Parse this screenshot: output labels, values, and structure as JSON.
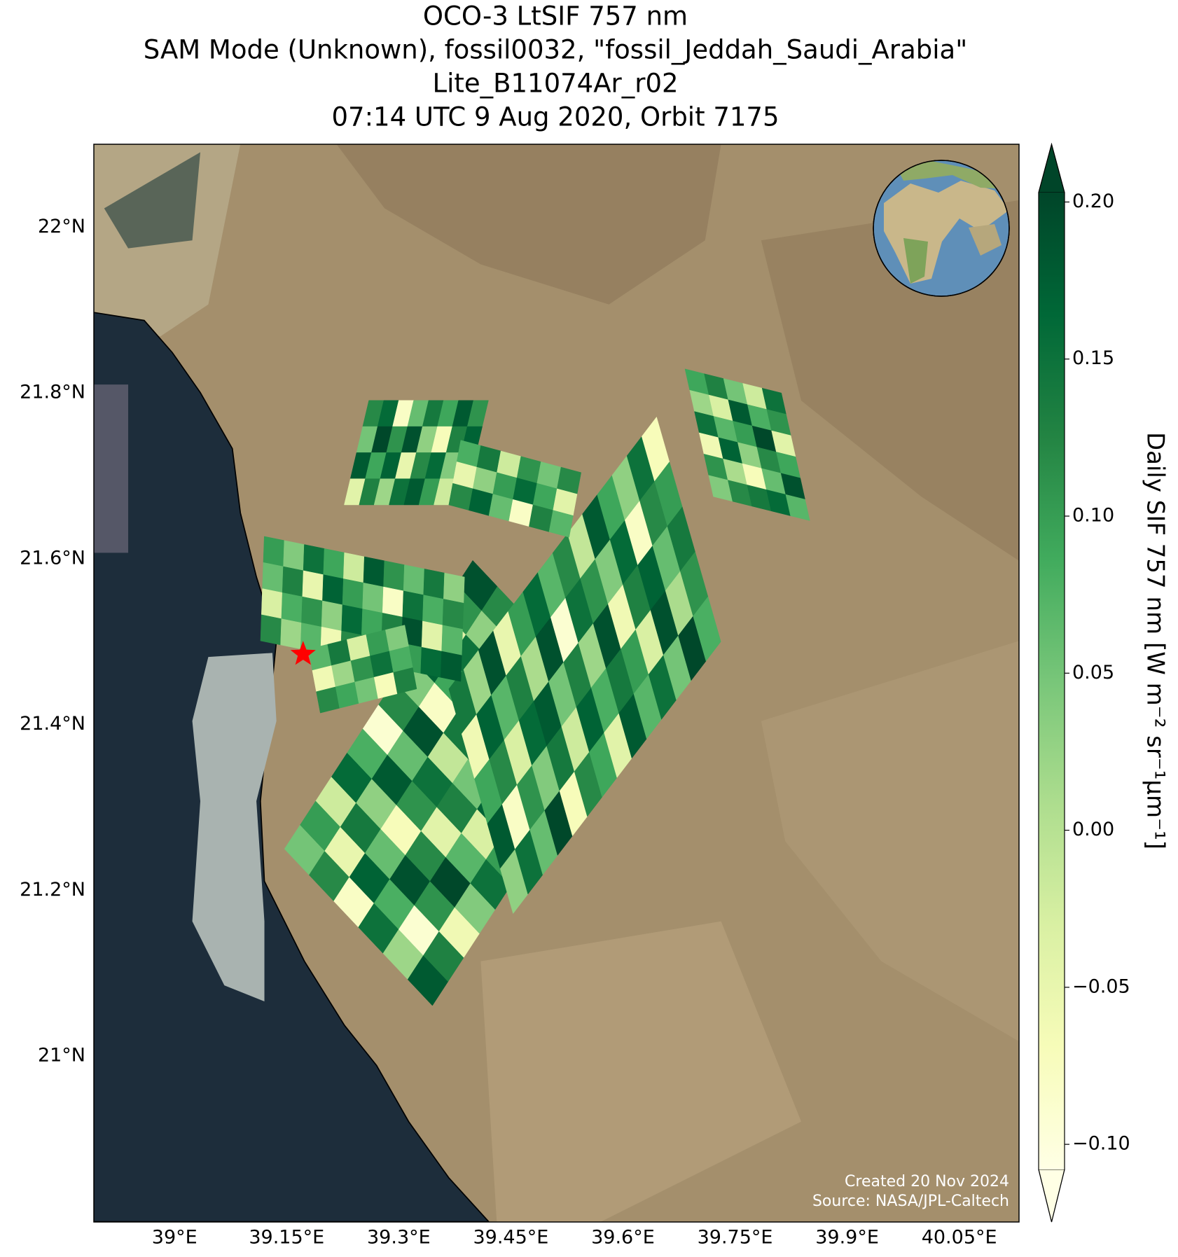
{
  "chart_data": {
    "type": "map",
    "title": [
      "OCO-3 LtSIF 757 nm",
      "SAM Mode (Unknown), fossil0032, \"fossil_Jeddah_Saudi_Arabia\"",
      "Lite_B11074Ar_r02",
      "07:14 UTC 9 Aug 2020, Orbit 7175"
    ],
    "xlim": [
      38.892,
      40.13
    ],
    "ylim": [
      20.8,
      22.1
    ],
    "xticks": [
      {
        "value": 39,
        "label": "39°E"
      },
      {
        "value": 39.15,
        "label": "39.15°E"
      },
      {
        "value": 39.3,
        "label": "39.3°E"
      },
      {
        "value": 39.45,
        "label": "39.45°E"
      },
      {
        "value": 39.6,
        "label": "39.6°E"
      },
      {
        "value": 39.75,
        "label": "39.75°E"
      },
      {
        "value": 39.9,
        "label": "39.9°E"
      },
      {
        "value": 40.05,
        "label": "40.05°E"
      }
    ],
    "yticks": [
      {
        "value": 21,
        "label": "21°N"
      },
      {
        "value": 21.2,
        "label": "21.2°N"
      },
      {
        "value": 21.4,
        "label": "21.4°N"
      },
      {
        "value": 21.6,
        "label": "21.6°N"
      },
      {
        "value": 21.8,
        "label": "21.8°N"
      },
      {
        "value": 22,
        "label": "22°N"
      }
    ],
    "grid": true,
    "colormap": "YlGn",
    "clim": [
      -0.108,
      0.203
    ],
    "colorbar_label": "Daily SIF 757 nm [W m⁻² sr⁻¹μm⁻¹]",
    "colorbar_ticks": [
      {
        "value": -0.1,
        "label": "−0.10"
      },
      {
        "value": -0.05,
        "label": "−0.05"
      },
      {
        "value": 0,
        "label": "0.00"
      },
      {
        "value": 0.05,
        "label": "0.05"
      },
      {
        "value": 0.1,
        "label": "0.10"
      },
      {
        "value": 0.15,
        "label": "0.15"
      },
      {
        "value": 0.2,
        "label": "0.20"
      }
    ],
    "target": {
      "lon": 39.172,
      "lat": 21.485,
      "color": "#ff0000"
    },
    "credits": [
      "Created 20 Nov 2024",
      "Source: NASA/JPL-Caltech"
    ],
    "swaths": [
      {
        "corner_a": [
          39.147,
          21.25
        ],
        "corner_b": [
          39.345,
          21.061
        ],
        "corner_c": [
          39.399,
          21.598
        ],
        "values": [
          [
            0.05,
            0.12,
            -0.08,
            0.15,
            0.02,
            0.18
          ],
          [
            0.1,
            -0.05,
            0.17,
            0.08,
            -0.09,
            0.13
          ],
          [
            -0.02,
            0.14,
            0.06,
            0.19,
            0.11,
            -0.06
          ],
          [
            0.16,
            0.03,
            -0.07,
            0.12,
            0.2,
            0.04
          ],
          [
            0.08,
            0.18,
            0.11,
            -0.04,
            0.07,
            0.15
          ],
          [
            -0.09,
            0.06,
            0.15,
            0.13,
            -0.03,
            0.1
          ],
          [
            0.12,
            0.19,
            -0.01,
            0.05,
            0.17,
            0.09
          ],
          [
            0.04,
            -0.08,
            0.14,
            0.18,
            0.1,
            -0.05
          ],
          [
            0.17,
            0.09,
            0.02,
            -0.06,
            0.13,
            0.19
          ],
          [
            -0.04,
            0.15,
            0.18,
            0.07,
            0.01,
            0.11
          ],
          [
            0.11,
            0.03,
            -0.09,
            0.16,
            0.14,
            0.06
          ],
          [
            0.19,
            0.12,
            0.08,
            0.0,
            -0.07,
            0.16
          ]
        ]
      },
      {
        "corner_a": [
          39.367,
          21.443
        ],
        "corner_b": [
          39.453,
          21.172
        ],
        "corner_c": [
          39.645,
          21.771
        ],
        "values": [
          [
            0.14,
            -0.06,
            0.09,
            0.18,
            0.03
          ],
          [
            0.02,
            0.17,
            0.12,
            -0.08,
            0.15
          ],
          [
            0.19,
            0.07,
            -0.03,
            0.11,
            0.06
          ],
          [
            -0.05,
            0.13,
            0.16,
            0.04,
            0.2
          ],
          [
            0.1,
            0.01,
            0.18,
            0.14,
            -0.07
          ],
          [
            0.16,
            0.19,
            0.05,
            -0.02,
            0.12
          ],
          [
            0.07,
            -0.09,
            0.13,
            0.17,
            0.09
          ],
          [
            0.12,
            0.15,
            0.02,
            0.08,
            -0.04
          ],
          [
            -0.01,
            0.11,
            0.19,
            0.14,
            0.18
          ],
          [
            0.18,
            0.04,
            -0.06,
            0.1,
            0.07
          ],
          [
            0.09,
            0.16,
            0.13,
            -0.03,
            0.15
          ],
          [
            0.03,
            -0.08,
            0.17,
            0.19,
            0.05
          ],
          [
            0.15,
            0.12,
            0.06,
            0.01,
            0.2
          ],
          [
            -0.07,
            0.1,
            0.14,
            0.11,
            0.08
          ]
        ]
      },
      {
        "corner_a": [
          39.26,
          21.791
        ],
        "corner_b": [
          39.227,
          21.665
        ],
        "corner_c": [
          39.42,
          21.791
        ],
        "values": [
          [
            0.12,
            0.05,
            0.18,
            -0.04
          ],
          [
            0.16,
            0.2,
            0.09,
            0.13
          ],
          [
            -0.08,
            0.11,
            0.17,
            0.02
          ],
          [
            0.06,
            0.19,
            -0.05,
            0.15
          ],
          [
            0.14,
            0.03,
            0.12,
            0.18
          ],
          [
            0.09,
            -0.07,
            0.16,
            0.1
          ],
          [
            0.18,
            0.13,
            0.04,
            -0.02
          ],
          [
            0.11,
            0.17,
            0.2,
            0.07
          ]
        ]
      },
      {
        "corner_a": [
          39.383,
          21.743
        ],
        "corner_b": [
          39.367,
          21.665
        ],
        "corner_c": [
          39.544,
          21.704
        ],
        "values": [
          [
            0.08,
            -0.05,
            0.12
          ],
          [
            0.14,
            0.03,
            0.17
          ],
          [
            -0.02,
            0.1,
            0.06
          ],
          [
            0.11,
            0.16,
            -0.08
          ],
          [
            0.05,
            0.09,
            0.13
          ],
          [
            0.12,
            -0.04,
            0.07
          ]
        ]
      },
      {
        "corner_a": [
          39.683,
          21.829
        ],
        "corner_b": [
          39.721,
          21.675
        ],
        "corner_c": [
          39.812,
          21.8
        ],
        "values": [
          [
            0.09,
            0.02,
            0.15,
            -0.06,
            0.11,
            0.04
          ],
          [
            0.13,
            -0.03,
            0.07,
            0.17,
            0.01,
            0.12
          ],
          [
            0.05,
            0.18,
            0.1,
            0.03,
            -0.07,
            0.14
          ],
          [
            -0.02,
            0.08,
            0.2,
            0.12,
            0.06,
            0.16
          ],
          [
            0.15,
            0.11,
            -0.04,
            0.09,
            0.19,
            0.07
          ]
        ]
      },
      {
        "corner_a": [
          39.12,
          21.627
        ],
        "corner_b": [
          39.115,
          21.501
        ],
        "corner_c": [
          39.388,
          21.578
        ],
        "values": [
          [
            0.1,
            0.06,
            -0.03,
            0.12
          ],
          [
            0.04,
            0.13,
            0.08,
            0.02
          ],
          [
            0.15,
            -0.05,
            0.11,
            0.07
          ],
          [
            0.09,
            0.17,
            0.03,
            -0.06
          ],
          [
            -0.02,
            0.1,
            0.16,
            0.12
          ],
          [
            0.18,
            0.05,
            0.09,
            0.14
          ],
          [
            0.11,
            -0.08,
            0.13,
            0.04
          ],
          [
            0.06,
            0.15,
            0.19,
            0.1
          ],
          [
            0.14,
            0.08,
            -0.04,
            0.16
          ],
          [
            0.03,
            0.12,
            0.07,
            0.18
          ]
        ]
      },
      {
        "corner_a": [
          39.179,
          21.491
        ],
        "corner_b": [
          39.195,
          21.414
        ],
        "corner_c": [
          39.308,
          21.52
        ],
        "values": [
          [
            0.07,
            -0.06,
            0.12
          ],
          [
            0.14,
            0.02,
            0.09
          ],
          [
            -0.03,
            0.11,
            0.05
          ],
          [
            0.1,
            0.15,
            -0.07
          ],
          [
            0.04,
            0.08,
            0.13
          ]
        ]
      }
    ]
  }
}
